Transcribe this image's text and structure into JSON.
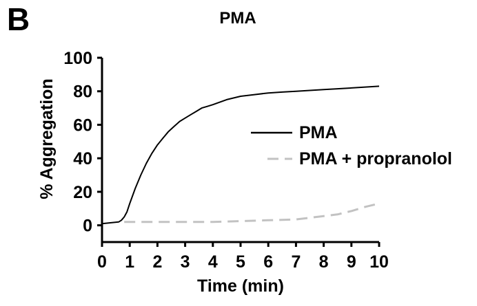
{
  "panel_label": "B",
  "chart_data": {
    "type": "line",
    "title": "PMA",
    "xlabel": "Time (min)",
    "ylabel": "% Aggregation",
    "xlim": [
      0,
      10
    ],
    "ylim": [
      -10,
      100
    ],
    "xticks": [
      0,
      1,
      2,
      3,
      4,
      5,
      6,
      7,
      8,
      9,
      10
    ],
    "yticks": [
      0,
      20,
      40,
      60,
      80,
      100
    ],
    "grid": false,
    "legend_position": "right",
    "series": [
      {
        "name": "PMA",
        "color": "#000000",
        "dash": "solid",
        "x": [
          0,
          0.3,
          0.6,
          0.7,
          0.8,
          0.9,
          1.0,
          1.2,
          1.4,
          1.6,
          1.8,
          2.0,
          2.2,
          2.4,
          2.6,
          2.8,
          3.0,
          3.2,
          3.4,
          3.6,
          3.8,
          4.0,
          4.5,
          5.0,
          5.5,
          6.0,
          6.5,
          7.0,
          7.5,
          8.0,
          8.5,
          9.0,
          9.5,
          10.0
        ],
        "y": [
          1,
          1.5,
          2,
          3,
          5,
          8,
          13,
          22,
          30,
          37,
          43,
          48,
          52,
          56,
          59,
          62,
          64,
          66,
          68,
          70,
          71,
          72,
          75,
          77,
          78,
          79,
          79.5,
          80,
          80.5,
          81,
          81.5,
          82,
          82.5,
          83
        ]
      },
      {
        "name": "PMA + propranolol",
        "color": "#c2c2c2",
        "dash": "dashed",
        "x": [
          0.8,
          1.5,
          2.0,
          3.0,
          4.0,
          5.0,
          6.0,
          7.0,
          7.5,
          8.0,
          8.5,
          9.0,
          9.5,
          10.0
        ],
        "y": [
          2,
          2,
          2,
          2,
          2,
          2.5,
          3,
          3.5,
          4.5,
          5.5,
          6.5,
          8.5,
          11,
          13
        ]
      }
    ]
  }
}
